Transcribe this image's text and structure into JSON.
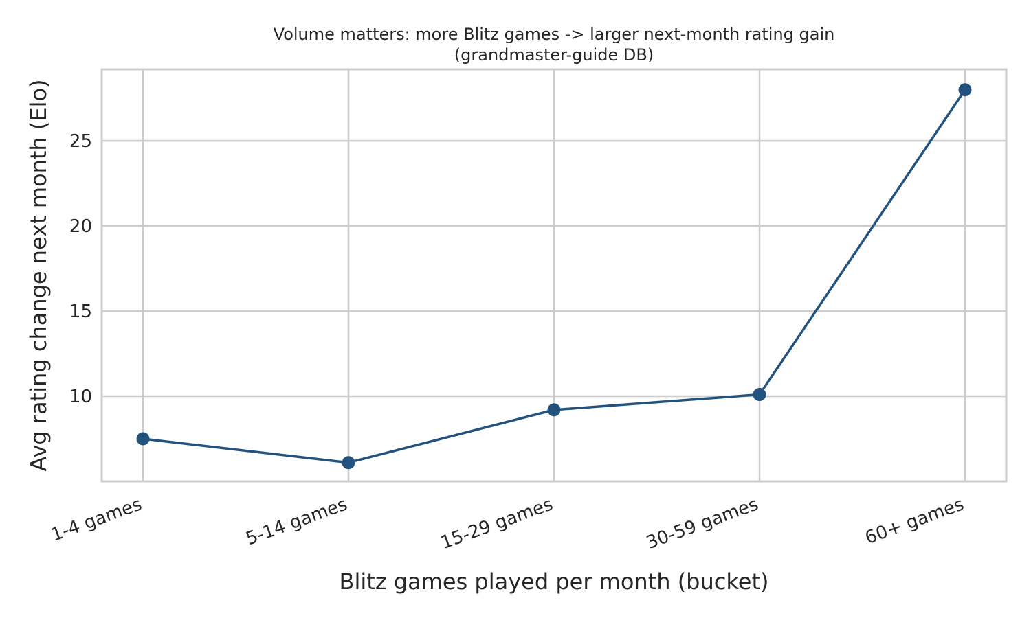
{
  "chart_data": {
    "type": "line",
    "title": "Volume matters: more Blitz games -> larger next-month rating gain",
    "subtitle": "(grandmaster-guide DB)",
    "xlabel": "Blitz games played per month (bucket)",
    "ylabel": "Avg rating change next month (Elo)",
    "categories": [
      "1-4 games",
      "5-14 games",
      "15-29 games",
      "30-59 games",
      "60+ games"
    ],
    "values": [
      7.5,
      6.1,
      9.2,
      10.1,
      28.0
    ],
    "yticks": [
      10,
      15,
      20,
      25
    ],
    "ytick_labels": [
      "10",
      "15",
      "20",
      "25"
    ],
    "ylim": [
      5.0,
      29.2
    ],
    "grid": true,
    "legend": "none",
    "color": "#23527f"
  }
}
